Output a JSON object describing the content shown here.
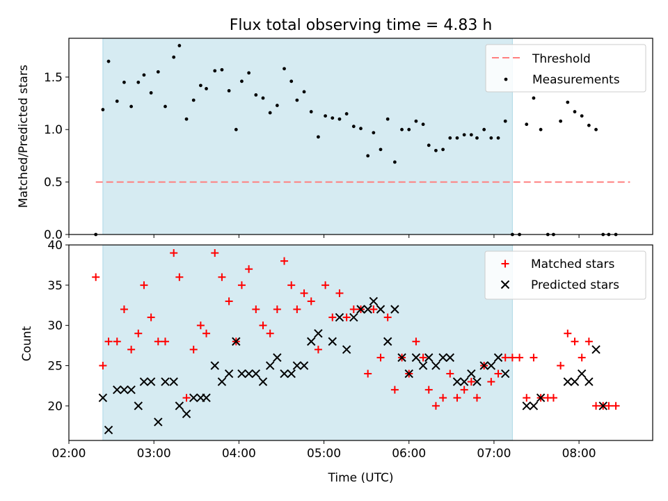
{
  "colors": {
    "shade": "#add8e6",
    "threshold": "#ff7f7f",
    "matched": "#ff0000",
    "predicted": "#000000",
    "measurement": "#000000"
  },
  "chart_data": [
    {
      "type": "scatter",
      "title": "Flux total observing time = 4.83 h",
      "xlabel": "",
      "ylabel": "Matched/Predicted stars",
      "xlim": [
        "02:00",
        "08:52"
      ],
      "ylim": [
        0,
        1.87
      ],
      "yticks": [
        "0.0",
        "0.5",
        "1.0",
        "1.5"
      ],
      "shaded_span": [
        "02:24",
        "07:13"
      ],
      "grid": false,
      "legend_position": "top-right",
      "threshold": {
        "name": "Threshold",
        "value": 0.5,
        "x_range": [
          "02:19",
          "08:36"
        ]
      },
      "series": [
        {
          "name": "Measurements",
          "points": [
            [
              "02:19",
              0.0
            ],
            [
              "02:24",
              1.19
            ],
            [
              "02:28",
              1.65
            ],
            [
              "02:34",
              1.27
            ],
            [
              "02:39",
              1.45
            ],
            [
              "02:44",
              1.22
            ],
            [
              "02:49",
              1.45
            ],
            [
              "02:53",
              1.52
            ],
            [
              "02:58",
              1.35
            ],
            [
              "03:03",
              1.55
            ],
            [
              "03:08",
              1.22
            ],
            [
              "03:14",
              1.69
            ],
            [
              "03:18",
              1.8
            ],
            [
              "03:23",
              1.1
            ],
            [
              "03:28",
              1.28
            ],
            [
              "03:33",
              1.42
            ],
            [
              "03:37",
              1.39
            ],
            [
              "03:43",
              1.56
            ],
            [
              "03:48",
              1.57
            ],
            [
              "03:53",
              1.37
            ],
            [
              "03:58",
              1.0
            ],
            [
              "04:02",
              1.46
            ],
            [
              "04:07",
              1.54
            ],
            [
              "04:12",
              1.33
            ],
            [
              "04:17",
              1.3
            ],
            [
              "04:22",
              1.16
            ],
            [
              "04:27",
              1.23
            ],
            [
              "04:32",
              1.58
            ],
            [
              "04:37",
              1.46
            ],
            [
              "04:41",
              1.28
            ],
            [
              "04:46",
              1.36
            ],
            [
              "04:51",
              1.17
            ],
            [
              "04:56",
              0.93
            ],
            [
              "05:01",
              1.13
            ],
            [
              "05:06",
              1.11
            ],
            [
              "05:11",
              1.1
            ],
            [
              "05:16",
              1.15
            ],
            [
              "05:21",
              1.03
            ],
            [
              "05:26",
              1.01
            ],
            [
              "05:31",
              0.75
            ],
            [
              "05:35",
              0.97
            ],
            [
              "05:40",
              0.81
            ],
            [
              "05:45",
              1.1
            ],
            [
              "05:50",
              0.69
            ],
            [
              "05:55",
              1.0
            ],
            [
              "06:00",
              1.0
            ],
            [
              "06:05",
              1.08
            ],
            [
              "06:10",
              1.05
            ],
            [
              "06:14",
              0.85
            ],
            [
              "06:19",
              0.8
            ],
            [
              "06:24",
              0.81
            ],
            [
              "06:29",
              0.92
            ],
            [
              "06:34",
              0.92
            ],
            [
              "06:39",
              0.95
            ],
            [
              "06:44",
              0.95
            ],
            [
              "06:48",
              0.92
            ],
            [
              "06:53",
              1.0
            ],
            [
              "06:58",
              0.92
            ],
            [
              "07:03",
              0.92
            ],
            [
              "07:08",
              1.08
            ],
            [
              "07:13",
              0.0
            ],
            [
              "07:18",
              0.0
            ],
            [
              "07:23",
              1.05
            ],
            [
              "07:28",
              1.3
            ],
            [
              "07:33",
              1.0
            ],
            [
              "07:38",
              0.0
            ],
            [
              "07:42",
              0.0
            ],
            [
              "07:47",
              1.08
            ],
            [
              "07:52",
              1.26
            ],
            [
              "07:57",
              1.17
            ],
            [
              "08:02",
              1.13
            ],
            [
              "08:07",
              1.04
            ],
            [
              "08:12",
              1.0
            ],
            [
              "08:17",
              0.0
            ],
            [
              "08:21",
              0.0
            ],
            [
              "08:26",
              0.0
            ]
          ]
        }
      ]
    },
    {
      "type": "scatter",
      "title": "",
      "xlabel": "Time (UTC)",
      "ylabel": "Count",
      "xlim": [
        "02:00",
        "08:52"
      ],
      "ylim": [
        15.7,
        40
      ],
      "yticks": [
        "20",
        "25",
        "30",
        "35",
        "40"
      ],
      "xticks": [
        "02:00",
        "03:00",
        "04:00",
        "05:00",
        "06:00",
        "07:00",
        "08:00"
      ],
      "shaded_span": [
        "02:24",
        "07:13"
      ],
      "grid": false,
      "legend_position": "top-right",
      "series": [
        {
          "name": "Matched stars",
          "marker": "+",
          "points": [
            [
              "02:19",
              36
            ],
            [
              "02:24",
              25
            ],
            [
              "02:28",
              28
            ],
            [
              "02:34",
              28
            ],
            [
              "02:39",
              32
            ],
            [
              "02:44",
              27
            ],
            [
              "02:49",
              29
            ],
            [
              "02:53",
              35
            ],
            [
              "02:58",
              31
            ],
            [
              "03:03",
              28
            ],
            [
              "03:08",
              28
            ],
            [
              "03:14",
              39
            ],
            [
              "03:18",
              36
            ],
            [
              "03:23",
              21
            ],
            [
              "03:28",
              27
            ],
            [
              "03:33",
              30
            ],
            [
              "03:37",
              29
            ],
            [
              "03:43",
              39
            ],
            [
              "03:48",
              36
            ],
            [
              "03:53",
              33
            ],
            [
              "03:58",
              28
            ],
            [
              "04:02",
              35
            ],
            [
              "04:07",
              37
            ],
            [
              "04:12",
              32
            ],
            [
              "04:17",
              30
            ],
            [
              "04:22",
              29
            ],
            [
              "04:27",
              32
            ],
            [
              "04:32",
              38
            ],
            [
              "04:37",
              35
            ],
            [
              "04:41",
              32
            ],
            [
              "04:46",
              34
            ],
            [
              "04:51",
              33
            ],
            [
              "04:56",
              27
            ],
            [
              "05:01",
              35
            ],
            [
              "05:06",
              31
            ],
            [
              "05:11",
              34
            ],
            [
              "05:16",
              31
            ],
            [
              "05:21",
              32
            ],
            [
              "05:26",
              32
            ],
            [
              "05:31",
              24
            ],
            [
              "05:35",
              32
            ],
            [
              "05:40",
              26
            ],
            [
              "05:45",
              31
            ],
            [
              "05:50",
              22
            ],
            [
              "05:55",
              26
            ],
            [
              "06:00",
              24
            ],
            [
              "06:05",
              28
            ],
            [
              "06:10",
              26
            ],
            [
              "06:14",
              22
            ],
            [
              "06:19",
              20
            ],
            [
              "06:24",
              21
            ],
            [
              "06:29",
              24
            ],
            [
              "06:34",
              21
            ],
            [
              "06:39",
              22
            ],
            [
              "06:44",
              23
            ],
            [
              "06:48",
              21
            ],
            [
              "06:53",
              25
            ],
            [
              "06:58",
              23
            ],
            [
              "07:03",
              24
            ],
            [
              "07:08",
              26
            ],
            [
              "07:13",
              26
            ],
            [
              "07:18",
              26
            ],
            [
              "07:23",
              21
            ],
            [
              "07:28",
              26
            ],
            [
              "07:33",
              21
            ],
            [
              "07:38",
              21
            ],
            [
              "07:42",
              21
            ],
            [
              "07:47",
              25
            ],
            [
              "07:52",
              29
            ],
            [
              "07:57",
              28
            ],
            [
              "08:02",
              26
            ],
            [
              "08:07",
              28
            ],
            [
              "08:12",
              20
            ],
            [
              "08:17",
              20
            ],
            [
              "08:21",
              20
            ],
            [
              "08:26",
              20
            ]
          ]
        },
        {
          "name": "Predicted stars",
          "marker": "x",
          "points": [
            [
              "02:24",
              21
            ],
            [
              "02:28",
              17
            ],
            [
              "02:34",
              22
            ],
            [
              "02:39",
              22
            ],
            [
              "02:44",
              22
            ],
            [
              "02:49",
              20
            ],
            [
              "02:53",
              23
            ],
            [
              "02:58",
              23
            ],
            [
              "03:03",
              18
            ],
            [
              "03:08",
              23
            ],
            [
              "03:14",
              23
            ],
            [
              "03:18",
              20
            ],
            [
              "03:23",
              19
            ],
            [
              "03:28",
              21
            ],
            [
              "03:33",
              21
            ],
            [
              "03:37",
              21
            ],
            [
              "03:43",
              25
            ],
            [
              "03:48",
              23
            ],
            [
              "03:53",
              24
            ],
            [
              "03:58",
              28
            ],
            [
              "04:02",
              24
            ],
            [
              "04:07",
              24
            ],
            [
              "04:12",
              24
            ],
            [
              "04:17",
              23
            ],
            [
              "04:22",
              25
            ],
            [
              "04:27",
              26
            ],
            [
              "04:32",
              24
            ],
            [
              "04:37",
              24
            ],
            [
              "04:41",
              25
            ],
            [
              "04:46",
              25
            ],
            [
              "04:51",
              28
            ],
            [
              "04:56",
              29
            ],
            [
              "05:06",
              28
            ],
            [
              "05:11",
              31
            ],
            [
              "05:16",
              27
            ],
            [
              "05:21",
              31
            ],
            [
              "05:26",
              32
            ],
            [
              "05:31",
              32
            ],
            [
              "05:35",
              33
            ],
            [
              "05:40",
              32
            ],
            [
              "05:45",
              28
            ],
            [
              "05:50",
              32
            ],
            [
              "05:55",
              26
            ],
            [
              "06:00",
              24
            ],
            [
              "06:05",
              26
            ],
            [
              "06:10",
              25
            ],
            [
              "06:14",
              26
            ],
            [
              "06:19",
              25
            ],
            [
              "06:24",
              26
            ],
            [
              "06:29",
              26
            ],
            [
              "06:34",
              23
            ],
            [
              "06:39",
              23
            ],
            [
              "06:44",
              24
            ],
            [
              "06:48",
              23
            ],
            [
              "06:53",
              25
            ],
            [
              "06:58",
              25
            ],
            [
              "07:03",
              26
            ],
            [
              "07:08",
              24
            ],
            [
              "07:23",
              20
            ],
            [
              "07:28",
              20
            ],
            [
              "07:33",
              21
            ],
            [
              "07:52",
              23
            ],
            [
              "07:57",
              23
            ],
            [
              "08:02",
              24
            ],
            [
              "08:07",
              23
            ],
            [
              "08:12",
              27
            ],
            [
              "08:17",
              20
            ]
          ]
        }
      ]
    }
  ]
}
